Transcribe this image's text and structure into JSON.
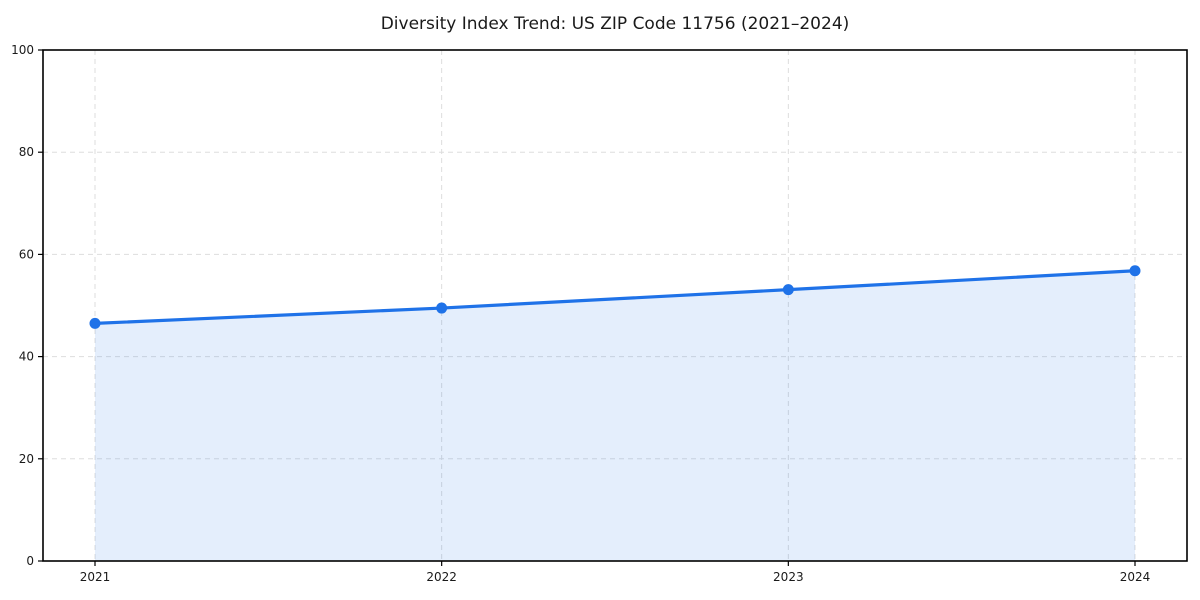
{
  "chart_data": {
    "type": "area",
    "title": "Diversity Index Trend: US ZIP Code 11756 (2021–2024)",
    "categories": [
      "2021",
      "2022",
      "2023",
      "2024"
    ],
    "series": [
      {
        "name": "Diversity Index",
        "values": [
          46.5,
          49.5,
          53.1,
          56.8
        ]
      }
    ],
    "xlabel": "",
    "ylabel": "",
    "ylim": [
      0,
      100
    ],
    "yticks": [
      0,
      20,
      40,
      60,
      80,
      100
    ],
    "grid": true,
    "grid_style": "dashed",
    "legend_position": "none",
    "colors": {
      "line": "#1f72e8",
      "marker": "#1f72e8",
      "fill": "#1f72e8",
      "fill_opacity": "0.12",
      "grid": "#dddddd",
      "axis": "#000000",
      "text": "#1a1a1a",
      "background": "#ffffff"
    }
  }
}
